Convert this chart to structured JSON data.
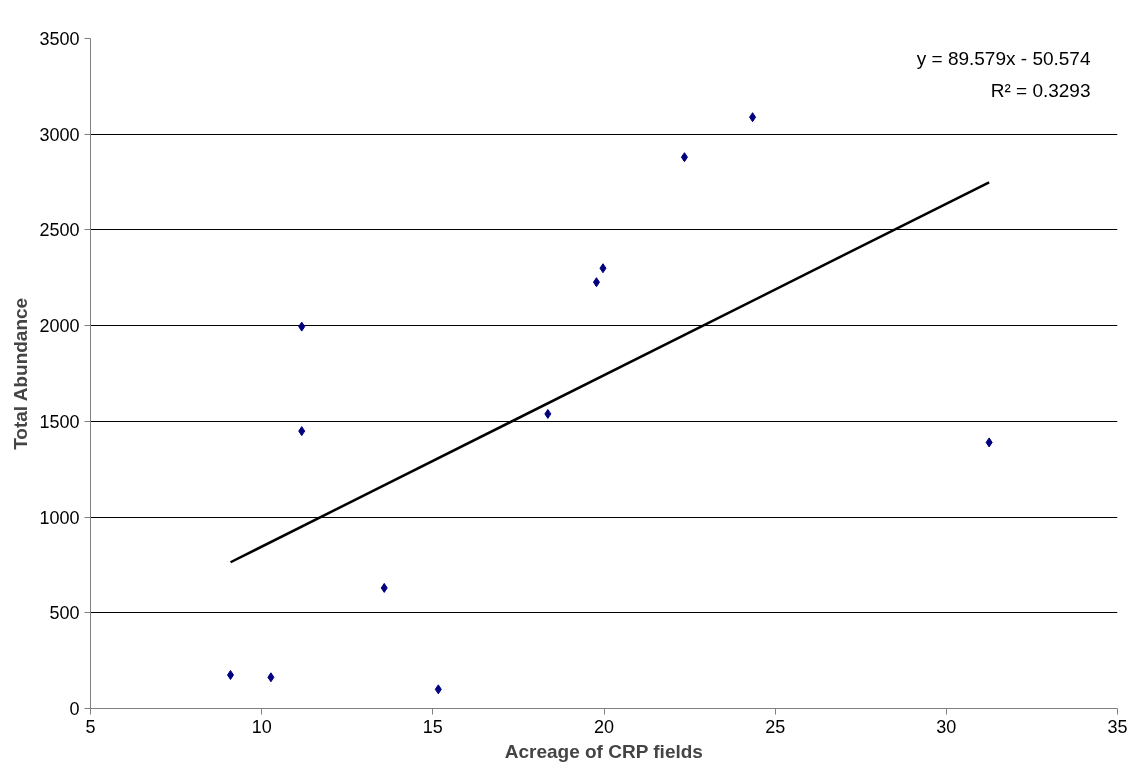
{
  "chart_data": {
    "type": "scatter",
    "xlabel": "Acreage of CRP fields",
    "ylabel": "Total Abundance",
    "xlim": [
      5,
      35
    ],
    "xticks": [
      5,
      10,
      15,
      20,
      25,
      30,
      35
    ],
    "ylim": [
      0,
      3500
    ],
    "yticks": [
      0,
      500,
      1000,
      1500,
      2000,
      2500,
      3000,
      3500
    ],
    "grid": "y",
    "series": [
      {
        "color": "#000080",
        "marker": "diamond",
        "x": [
          9.09,
          10.27,
          11.17,
          11.17,
          13.58,
          15.16,
          18.36,
          19.78,
          19.97,
          22.35,
          24.34,
          31.25
        ],
        "values": [
          175,
          163,
          1449,
          1995,
          630,
          100,
          1539,
          2227,
          2300,
          2880,
          3089,
          1390
        ]
      },
      {
        "type": "line",
        "color": "#000000",
        "line_style": "solid",
        "x": [
          9.09,
          31.25
        ],
        "values": [
          764,
          2749
        ]
      }
    ],
    "annotations": [
      "y = 89.579x - 50.574",
      "R² = 0.3293"
    ]
  }
}
